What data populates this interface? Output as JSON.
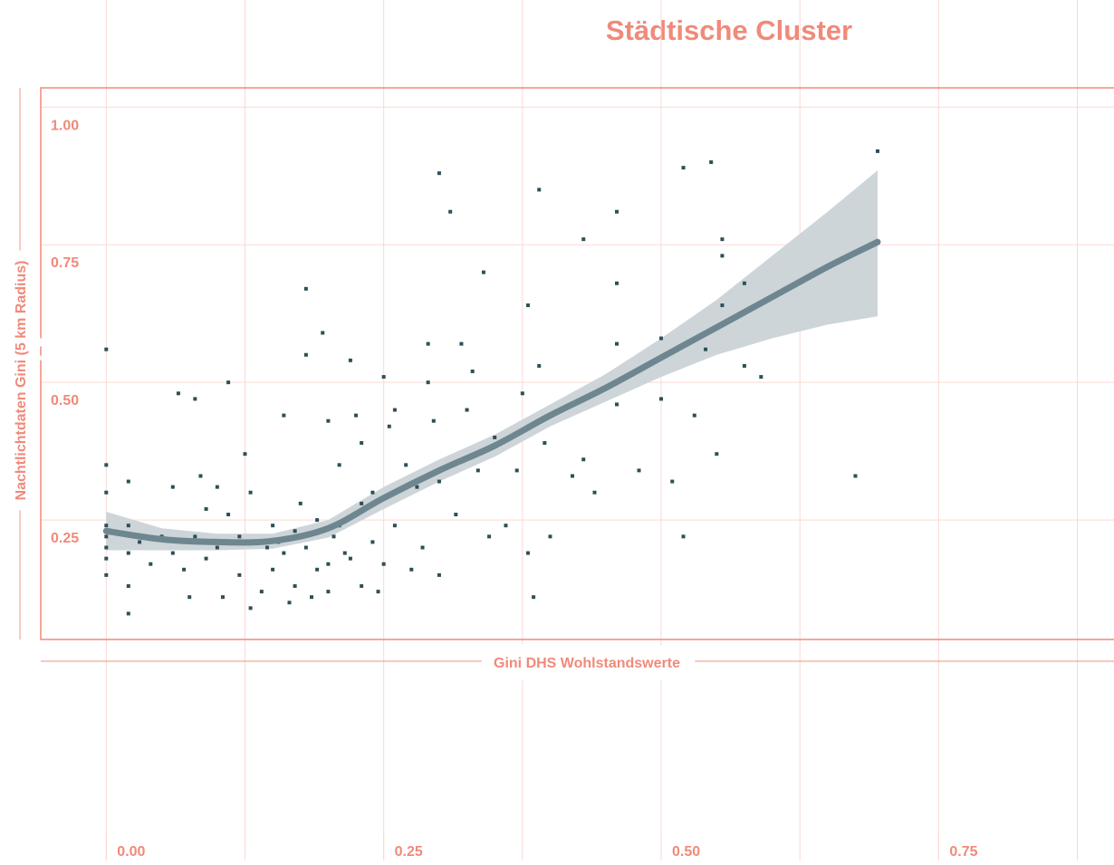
{
  "chart_data": {
    "type": "scatter",
    "title": "Städtische Cluster",
    "xlabel": "Gini DHS Wohlstandswerte",
    "ylabel": "Nachtlichtdaten Gini (5 km Radius)",
    "xlim": [
      -0.059,
      0.908
    ],
    "ylim": [
      0.033,
      1.035
    ],
    "xticks": [
      {
        "value": 0,
        "label": "0.00"
      },
      0.25,
      {
        "value": 0.5,
        "label": "0.50"
      },
      0.75
    ],
    "xgrid": [
      0,
      0.125,
      0.25,
      0.375,
      0.5,
      0.625,
      0.75,
      0.875
    ],
    "yticks": [
      0.25,
      {
        "value": 0.5,
        "label": "0.50"
      },
      0.75,
      {
        "value": 1,
        "label": "1.00"
      }
    ],
    "grid": true,
    "points": {
      "color": "#2f4f56",
      "x": [
        0,
        0,
        0,
        0,
        0,
        0,
        0,
        0,
        0.02,
        0.02,
        0.02,
        0.02,
        0.02,
        0.03,
        0.04,
        0.05,
        0.06,
        0.06,
        0.065,
        0.07,
        0.075,
        0.08,
        0.08,
        0.085,
        0.09,
        0.09,
        0.1,
        0.1,
        0.105,
        0.11,
        0.11,
        0.12,
        0.12,
        0.125,
        0.13,
        0.13,
        0.14,
        0.145,
        0.15,
        0.15,
        0.155,
        0.16,
        0.16,
        0.165,
        0.17,
        0.17,
        0.175,
        0.18,
        0.18,
        0.185,
        0.19,
        0.19,
        0.2,
        0.2,
        0.205,
        0.21,
        0.21,
        0.22,
        0.23,
        0.23,
        0.24,
        0.25,
        0.18,
        0.195,
        0.2,
        0.215,
        0.22,
        0.225,
        0.23,
        0.24,
        0.245,
        0.25,
        0.255,
        0.26,
        0.26,
        0.27,
        0.275,
        0.28,
        0.285,
        0.29,
        0.29,
        0.295,
        0.3,
        0.3,
        0.3,
        0.31,
        0.315,
        0.32,
        0.325,
        0.33,
        0.335,
        0.34,
        0.345,
        0.35,
        0.36,
        0.37,
        0.375,
        0.38,
        0.38,
        0.385,
        0.39,
        0.395,
        0.4,
        0.39,
        0.42,
        0.43,
        0.44,
        0.43,
        0.46,
        0.46,
        0.48,
        0.46,
        0.46,
        0.5,
        0.5,
        0.51,
        0.52,
        0.53,
        0.54,
        0.55,
        0.52,
        0.545,
        0.59,
        0.555,
        0.555,
        0.555,
        0.575,
        0.575,
        0.675,
        0.695
      ],
      "values": [
        0.56,
        0.35,
        0.3,
        0.24,
        0.22,
        0.2,
        0.18,
        0.15,
        0.32,
        0.24,
        0.19,
        0.13,
        0.08,
        0.21,
        0.17,
        0.22,
        0.31,
        0.19,
        0.48,
        0.16,
        0.11,
        0.47,
        0.22,
        0.33,
        0.27,
        0.18,
        0.31,
        0.2,
        0.11,
        0.26,
        0.5,
        0.22,
        0.15,
        0.37,
        0.09,
        0.3,
        0.12,
        0.2,
        0.24,
        0.16,
        0.21,
        0.19,
        0.44,
        0.1,
        0.13,
        0.23,
        0.28,
        0.55,
        0.2,
        0.11,
        0.25,
        0.16,
        0.17,
        0.12,
        0.22,
        0.24,
        0.35,
        0.18,
        0.13,
        0.28,
        0.21,
        0.17,
        0.67,
        0.59,
        0.43,
        0.19,
        0.54,
        0.44,
        0.39,
        0.3,
        0.12,
        0.51,
        0.42,
        0.45,
        0.24,
        0.35,
        0.16,
        0.31,
        0.2,
        0.5,
        0.57,
        0.43,
        0.15,
        0.32,
        0.88,
        0.81,
        0.26,
        0.57,
        0.45,
        0.52,
        0.34,
        0.7,
        0.22,
        0.4,
        0.24,
        0.34,
        0.48,
        0.19,
        0.64,
        0.11,
        0.53,
        0.39,
        0.22,
        0.85,
        0.33,
        0.36,
        0.3,
        0.76,
        0.46,
        0.57,
        0.34,
        0.81,
        0.68,
        0.47,
        0.58,
        0.32,
        0.22,
        0.44,
        0.56,
        0.37,
        0.89,
        0.9,
        0.51,
        0.76,
        0.73,
        0.64,
        0.53,
        0.68,
        0.33,
        0.92
      ]
    },
    "fit": {
      "color": "#6e8690",
      "band_color": "#cdd5d9",
      "x": [
        0,
        0.05,
        0.1,
        0.15,
        0.2,
        0.25,
        0.3,
        0.35,
        0.4,
        0.45,
        0.5,
        0.55,
        0.6,
        0.65,
        0.695
      ],
      "values": [
        0.23,
        0.215,
        0.21,
        0.212,
        0.235,
        0.29,
        0.34,
        0.385,
        0.44,
        0.49,
        0.545,
        0.6,
        0.655,
        0.71,
        0.755
      ],
      "upper": [
        0.265,
        0.235,
        0.225,
        0.225,
        0.25,
        0.31,
        0.36,
        0.405,
        0.46,
        0.515,
        0.58,
        0.65,
        0.73,
        0.81,
        0.885
      ],
      "lower": [
        0.195,
        0.195,
        0.195,
        0.198,
        0.218,
        0.27,
        0.32,
        0.365,
        0.42,
        0.465,
        0.51,
        0.55,
        0.58,
        0.605,
        0.62
      ]
    }
  }
}
